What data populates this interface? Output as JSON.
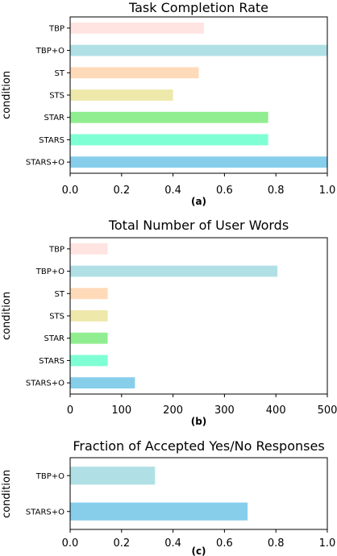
{
  "chart_data": [
    {
      "type": "bar",
      "orientation": "horizontal",
      "title": "Task Completion Rate",
      "ylabel": "condition",
      "panel_label": "(a)",
      "categories": [
        "TBP",
        "TBP+O",
        "ST",
        "STS",
        "STAR",
        "STARS",
        "STARS+O"
      ],
      "values": [
        0.52,
        1.0,
        0.5,
        0.4,
        0.77,
        0.77,
        1.0
      ],
      "colors": [
        "#ffe4e1",
        "#b0e0e6",
        "#ffdab9",
        "#eee8aa",
        "#90ee90",
        "#7fffd4",
        "#87ceeb"
      ],
      "xlim": [
        0,
        1.0
      ],
      "xticks": [
        "0.0",
        "0.2",
        "0.4",
        "0.6",
        "0.8",
        "1.0"
      ],
      "grid": false
    },
    {
      "type": "bar",
      "orientation": "horizontal",
      "title": "Total Number of User Words",
      "ylabel": "condition",
      "panel_label": "(b)",
      "categories": [
        "TBP",
        "TBP+O",
        "ST",
        "STS",
        "STAR",
        "STARS",
        "STARS+O"
      ],
      "values": [
        73,
        403,
        73,
        73,
        73,
        73,
        126
      ],
      "colors": [
        "#ffe4e1",
        "#b0e0e6",
        "#ffdab9",
        "#eee8aa",
        "#90ee90",
        "#7fffd4",
        "#87ceeb"
      ],
      "xlim": [
        0,
        500
      ],
      "xticks": [
        "0",
        "100",
        "200",
        "300",
        "400",
        "500"
      ],
      "grid": false
    },
    {
      "type": "bar",
      "orientation": "horizontal",
      "title": "Fraction of Accepted Yes/No Responses",
      "ylabel": "condition",
      "panel_label": "(c)",
      "categories": [
        "TBP+O",
        "STARS+O"
      ],
      "values": [
        0.33,
        0.69
      ],
      "colors": [
        "#b0e0e6",
        "#87ceeb"
      ],
      "xlim": [
        0,
        1.0
      ],
      "xticks": [
        "0.0",
        "0.2",
        "0.4",
        "0.6",
        "0.8",
        "1.0"
      ],
      "grid": false
    }
  ]
}
